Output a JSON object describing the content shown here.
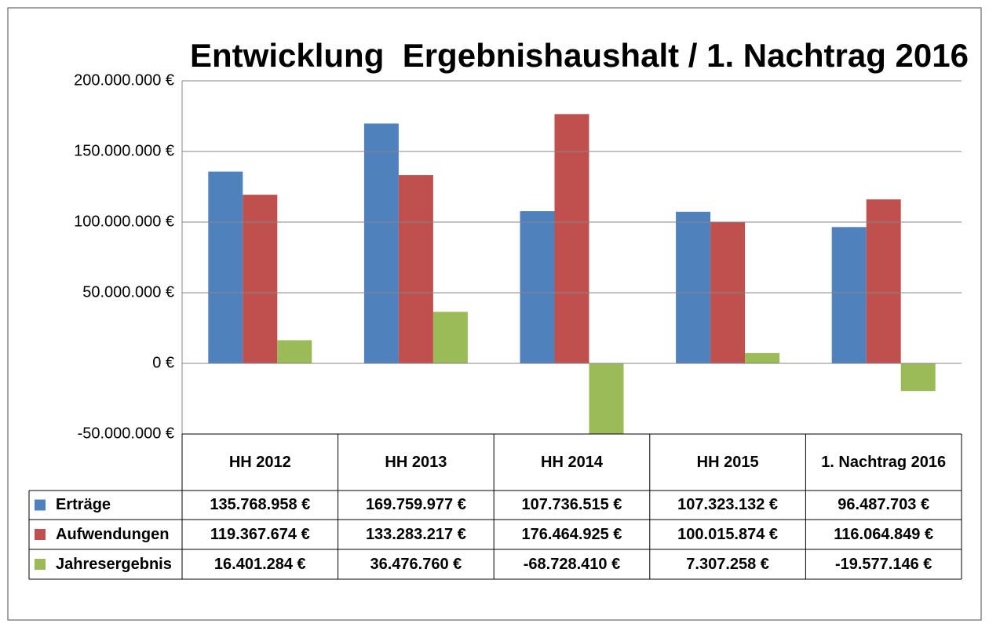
{
  "chart_data": {
    "type": "bar",
    "title": "Entwicklung  Ergebnishaushalt / 1. Nachtrag 2016",
    "categories": [
      "HH 2012",
      "HH 2013",
      "HH 2014",
      "HH 2015",
      "1. Nachtrag 2016"
    ],
    "series": [
      {
        "name": "Erträge",
        "color": "#4f81bd",
        "values": [
          135768958,
          169759977,
          107736515,
          107323132,
          96487703
        ],
        "value_labels": [
          "135.768.958 €",
          "169.759.977 €",
          "107.736.515 €",
          "107.323.132 €",
          "96.487.703 €"
        ]
      },
      {
        "name": "Aufwendungen",
        "color": "#c0504d",
        "values": [
          119367674,
          133283217,
          176464925,
          100015874,
          116064849
        ],
        "value_labels": [
          "119.367.674 €",
          "133.283.217 €",
          "176.464.925 €",
          "100.015.874 €",
          "116.064.849 €"
        ]
      },
      {
        "name": "Jahresergebnis",
        "color": "#9bbb59",
        "values": [
          16401284,
          36476760,
          -68728410,
          7307258,
          -19577146
        ],
        "value_labels": [
          "16.401.284 €",
          "36.476.760 €",
          "-68.728.410 €",
          "7.307.258 €",
          "-19.577.146 €"
        ]
      }
    ],
    "ylim": [
      -50000000,
      200000000
    ],
    "yticks": [
      {
        "value": -50000000,
        "label": "-50.000.000 €"
      },
      {
        "value": 0,
        "label": "0 €"
      },
      {
        "value": 50000000,
        "label": "50.000.000 €"
      },
      {
        "value": 100000000,
        "label": "100.000.000 €"
      },
      {
        "value": 150000000,
        "label": "150.000.000 €"
      },
      {
        "value": 200000000,
        "label": "200.000.000 €"
      }
    ],
    "grid": true
  }
}
